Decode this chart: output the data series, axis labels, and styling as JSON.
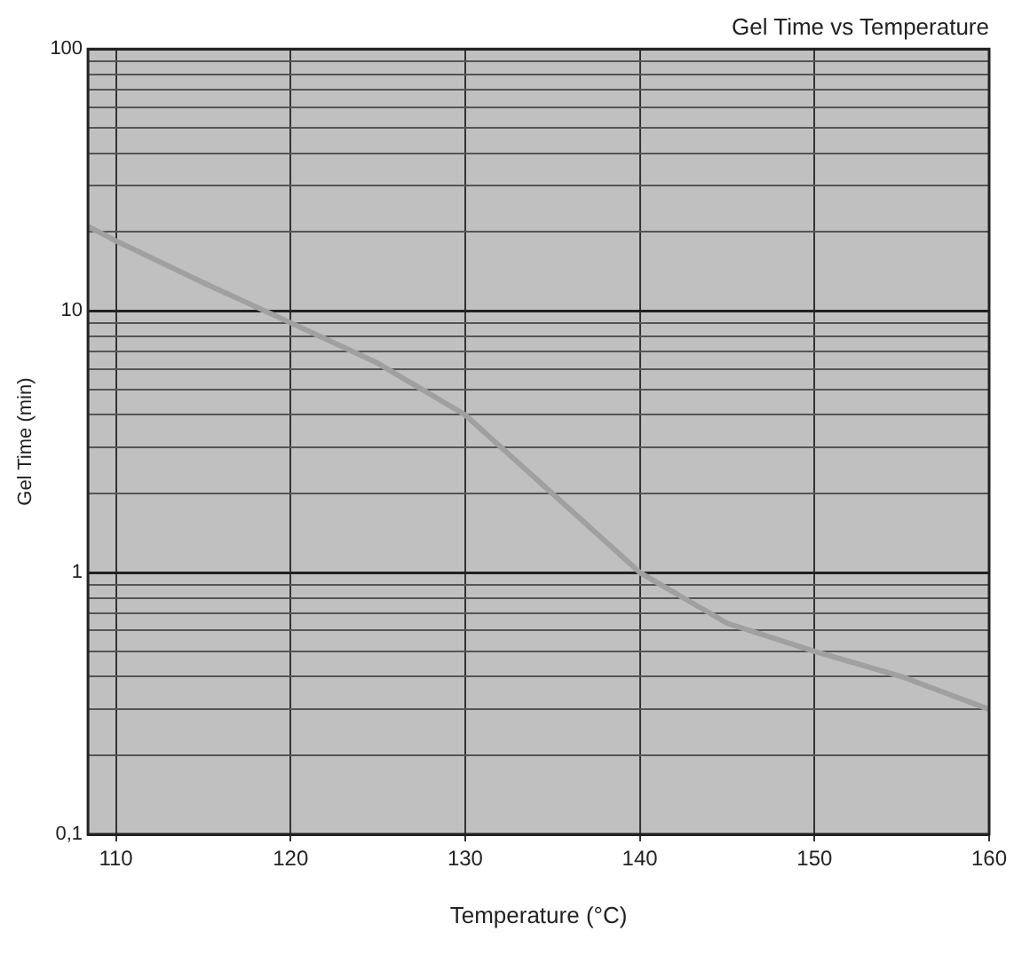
{
  "chart_data": {
    "type": "line",
    "title": "Gel Time vs Temperature",
    "xlabel": "Temperature (°C)",
    "ylabel": "Gel Time (min)",
    "x": [
      108.4,
      110,
      115,
      120,
      125,
      130,
      135,
      140,
      145,
      150,
      155,
      160
    ],
    "series": [
      {
        "color": "#a0a0a0",
        "values": [
          21,
          18.5,
          12.8,
          9.0,
          6.3,
          4.0,
          2.0,
          1.0,
          0.64,
          0.5,
          0.4,
          0.3
        ]
      }
    ],
    "xlim": [
      108.4,
      160
    ],
    "xticks": [
      110,
      120,
      130,
      140,
      150,
      160
    ],
    "ylim": [
      0.1,
      100
    ],
    "log": true,
    "yticks": [
      {
        "value": 0.1,
        "label": "0,1"
      },
      {
        "value": 0.2,
        "label": null
      },
      {
        "value": 0.3,
        "label": null
      },
      {
        "value": 0.4,
        "label": null
      },
      {
        "value": 0.5,
        "label": null
      },
      {
        "value": 0.6,
        "label": null
      },
      {
        "value": 0.7,
        "label": null
      },
      {
        "value": 0.8,
        "label": null
      },
      {
        "value": 0.9,
        "label": null
      },
      1,
      {
        "value": 2,
        "label": null
      },
      {
        "value": 3,
        "label": null
      },
      {
        "value": 4,
        "label": null
      },
      {
        "value": 5,
        "label": null
      },
      {
        "value": 6,
        "label": null
      },
      {
        "value": 7,
        "label": null
      },
      {
        "value": 8,
        "label": null
      },
      {
        "value": 9,
        "label": null
      },
      10,
      {
        "value": 20,
        "label": null
      },
      {
        "value": 30,
        "label": null
      },
      {
        "value": 40,
        "label": null
      },
      {
        "value": 50,
        "label": null
      },
      {
        "value": 60,
        "label": null
      },
      {
        "value": 70,
        "label": null
      },
      {
        "value": 80,
        "label": null
      },
      {
        "value": 90,
        "label": null
      },
      100
    ],
    "grid": true,
    "legend": false,
    "marker": "none",
    "line_style": "solid"
  }
}
